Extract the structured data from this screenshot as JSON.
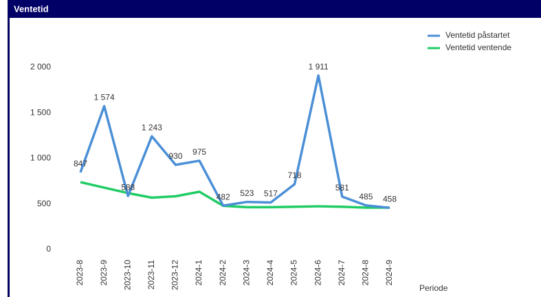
{
  "panel_title": "Ventetid",
  "chart_data": {
    "type": "line",
    "x_label": "Periode",
    "categories": [
      "2023-8",
      "2023-9",
      "2023-10",
      "2023-11",
      "2023-12",
      "2024-1",
      "2024-2",
      "2024-3",
      "2024-4",
      "2024-5",
      "2024-6",
      "2024-7",
      "2024-8",
      "2024-9"
    ],
    "series": [
      {
        "name": "Ventetid påstartet",
        "color": "#4a8fd6",
        "values": [
          847,
          1574,
          588,
          1243,
          930,
          975,
          482,
          523,
          517,
          718,
          1911,
          581,
          485,
          458
        ],
        "value_labels": [
          "847",
          "1 574",
          "588",
          "1 243",
          "930",
          "975",
          "482",
          "523",
          "517",
          "718",
          "1 911",
          "581",
          "485",
          "458"
        ]
      },
      {
        "name": "Ventetid ventende",
        "color": "#1fcc64",
        "values": [
          740,
          680,
          620,
          570,
          585,
          635,
          480,
          465,
          465,
          470,
          475,
          470,
          460,
          460
        ]
      }
    ],
    "ylim": [
      0,
      2000
    ],
    "yticks": [
      0,
      500,
      {
        "value": 1000,
        "label": "1 000"
      },
      {
        "value": 1500,
        "label": "1 500"
      },
      {
        "value": 2000,
        "label": "2 000"
      }
    ],
    "grid": false,
    "legend": "top-right"
  }
}
